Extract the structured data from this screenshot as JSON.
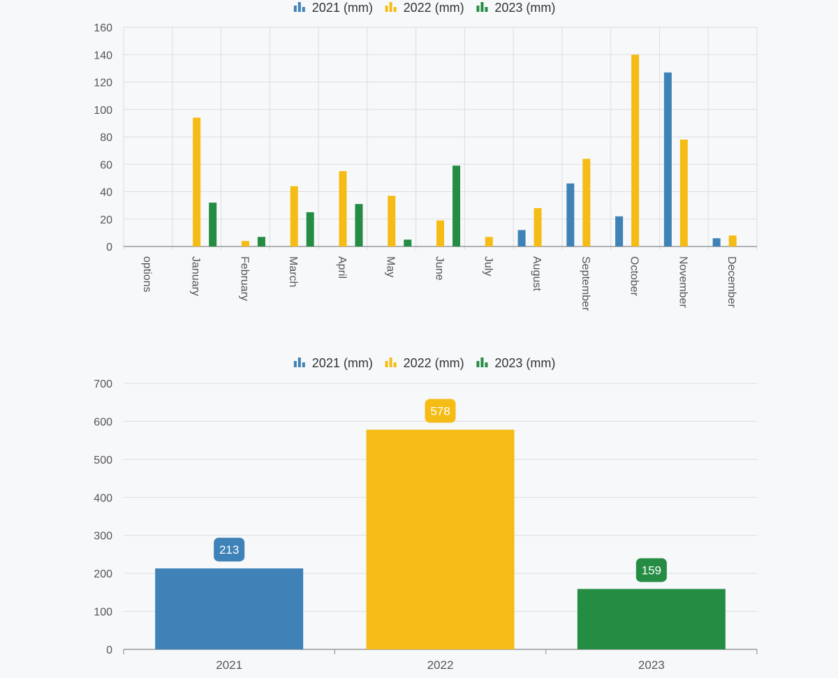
{
  "colors": {
    "s2021": "#3f82b7",
    "s2022": "#f5bc16",
    "s2023": "#258c43",
    "grid": "#dddddd",
    "axis": "#999999",
    "text": "#555555",
    "label_text": "#ffffff"
  },
  "chart_data": [
    {
      "type": "bar",
      "legend_position": "top-center",
      "legend_icon": "bar-chart-icon",
      "grid": true,
      "x_label_rotation": "vertical",
      "categories": [
        "options",
        "January",
        "February",
        "March",
        "April",
        "May",
        "June",
        "July",
        "August",
        "September",
        "October",
        "November",
        "December"
      ],
      "ylim": [
        0,
        160
      ],
      "yticks": [
        0,
        20,
        40,
        60,
        80,
        100,
        120,
        140,
        160
      ],
      "series": [
        {
          "name": "2021 (mm)",
          "color_key": "s2021",
          "values": [
            0,
            0,
            0,
            0,
            0,
            0,
            0,
            0,
            12,
            46,
            22,
            127,
            6
          ]
        },
        {
          "name": "2022 (mm)",
          "color_key": "s2022",
          "values": [
            0,
            94,
            4,
            44,
            55,
            37,
            19,
            7,
            28,
            64,
            140,
            78,
            8
          ]
        },
        {
          "name": "2023 (mm)",
          "color_key": "s2023",
          "values": [
            0,
            32,
            7,
            25,
            31,
            5,
            59,
            0,
            0,
            0,
            0,
            0,
            0
          ]
        }
      ]
    },
    {
      "type": "bar",
      "legend_position": "top-center",
      "legend_icon": "bar-chart-icon",
      "grid": true,
      "categories": [
        "2021",
        "2022",
        "2023"
      ],
      "ylim": [
        0,
        700
      ],
      "yticks": [
        0,
        100,
        200,
        300,
        400,
        500,
        600,
        700
      ],
      "legend": [
        {
          "name": "2021 (mm)",
          "color_key": "s2021"
        },
        {
          "name": "2022 (mm)",
          "color_key": "s2022"
        },
        {
          "name": "2023 (mm)",
          "color_key": "s2023"
        }
      ],
      "bars": [
        {
          "category": "2021",
          "value": 213,
          "label": "213",
          "color_key": "s2021"
        },
        {
          "category": "2022",
          "value": 578,
          "label": "578",
          "color_key": "s2022"
        },
        {
          "category": "2023",
          "value": 159,
          "label": "159",
          "color_key": "s2023"
        }
      ]
    }
  ]
}
